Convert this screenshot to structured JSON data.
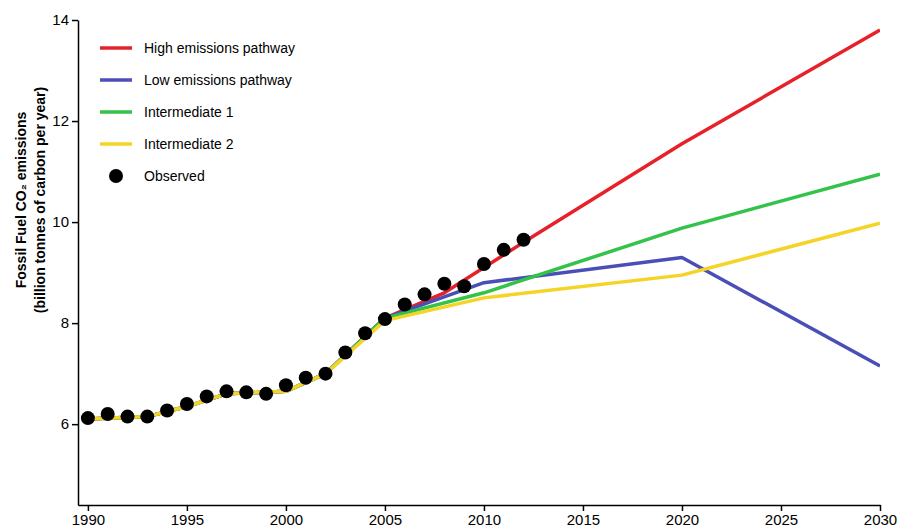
{
  "chart_data": {
    "type": "line",
    "y_label": [
      "Fossil Fuel CO₂ emissions",
      "(billion tonnes of carbon per year)"
    ],
    "xlim": [
      1989.5,
      2030
    ],
    "xticks": [
      1990,
      1995,
      2000,
      2005,
      2010,
      2015,
      2020,
      2025,
      2030
    ],
    "ylim": [
      4.4,
      14
    ],
    "yticks": [
      6,
      8,
      10,
      12,
      14
    ],
    "grid": false,
    "legend": "top-left",
    "series": [
      {
        "name": "High emissions pathway",
        "type": "line",
        "color": "#e8202a",
        "line_style": "solid",
        "x": [
          1990,
          1993,
          1995,
          1997,
          2000,
          2002,
          2005,
          2008,
          2012,
          2020,
          2030
        ],
        "values": [
          6.1,
          6.15,
          6.35,
          6.6,
          6.65,
          7.0,
          8.1,
          8.6,
          9.6,
          11.55,
          13.8
        ]
      },
      {
        "name": "Low emissions pathway",
        "type": "line",
        "color": "#4a4fb5",
        "line_style": "solid",
        "x": [
          1990,
          1993,
          1995,
          1997,
          2000,
          2002,
          2005,
          2010,
          2020,
          2030
        ],
        "values": [
          6.1,
          6.15,
          6.35,
          6.6,
          6.65,
          7.0,
          8.1,
          8.8,
          9.3,
          7.15
        ]
      },
      {
        "name": "Intermediate 1",
        "type": "line",
        "color": "#33c24a",
        "line_style": "solid",
        "x": [
          1990,
          1993,
          1995,
          1997,
          2000,
          2002,
          2005,
          2010,
          2020,
          2030
        ],
        "values": [
          6.1,
          6.15,
          6.35,
          6.6,
          6.65,
          7.0,
          8.1,
          8.6,
          9.88,
          10.95
        ]
      },
      {
        "name": "Intermediate 2",
        "type": "line",
        "color": "#f5d327",
        "line_style": "solid",
        "x": [
          1990,
          1993,
          1995,
          1997,
          2000,
          2002,
          2005,
          2010,
          2020,
          2030
        ],
        "values": [
          6.1,
          6.15,
          6.35,
          6.6,
          6.65,
          7.0,
          8.05,
          8.5,
          8.95,
          9.98
        ]
      },
      {
        "name": "Observed",
        "type": "scatter",
        "color": "#000000",
        "marker": "circle",
        "x": [
          1990,
          1991,
          1992,
          1993,
          1994,
          1995,
          1996,
          1997,
          1998,
          1999,
          2000,
          2001,
          2002,
          2003,
          2004,
          2005,
          2006,
          2007,
          2008,
          2009,
          2010,
          2011,
          2012
        ],
        "values": [
          6.12,
          6.2,
          6.15,
          6.15,
          6.27,
          6.4,
          6.55,
          6.65,
          6.63,
          6.6,
          6.77,
          6.92,
          7.0,
          7.42,
          7.8,
          8.08,
          8.37,
          8.57,
          8.78,
          8.73,
          9.17,
          9.45,
          9.65
        ]
      }
    ]
  }
}
